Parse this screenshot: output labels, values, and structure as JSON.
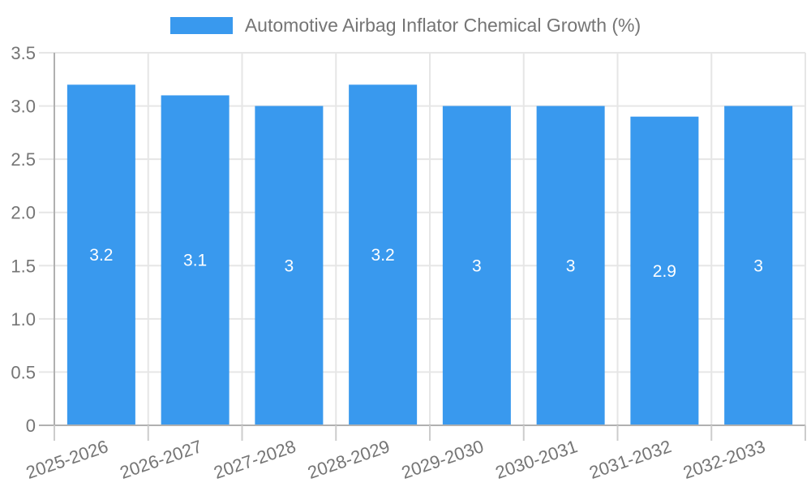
{
  "page": {
    "background": "#ffffff"
  },
  "legend": {
    "label": "Automotive Airbag Inflator Chemical Growth (%)",
    "swatch_color": "#3999ee"
  },
  "chart_data": {
    "type": "bar",
    "title": "Automotive Airbag Inflator Chemical Growth (%)",
    "categories": [
      "2025-2026",
      "2026-2027",
      "2027-2028",
      "2028-2029",
      "2029-2030",
      "2030-2031",
      "2031-2032",
      "2032-2033"
    ],
    "values": [
      3.2,
      3.1,
      3,
      3.2,
      3,
      3,
      2.9,
      3
    ],
    "bar_labels": [
      "3.2",
      "3.1",
      "3",
      "3.2",
      "3",
      "3",
      "2.9",
      "3"
    ],
    "xlabel": "",
    "ylabel": "",
    "ylim": [
      0,
      3.5
    ],
    "y_ticks": [
      {
        "value": 0,
        "label": "0"
      },
      {
        "value": 0.5,
        "label": "0.5"
      },
      {
        "value": 1.0,
        "label": "1.0"
      },
      {
        "value": 1.5,
        "label": "1.5"
      },
      {
        "value": 2.0,
        "label": "2.0"
      },
      {
        "value": 2.5,
        "label": "2.5"
      },
      {
        "value": 3.0,
        "label": "3.0"
      },
      {
        "value": 3.5,
        "label": "3.5"
      }
    ],
    "grid": true,
    "legend_position": "top",
    "x_label_rotation_deg": -19,
    "colors": {
      "bar": "#3999ee",
      "axis_text": "#757575",
      "bar_label_text": "#ffffff",
      "gridline": "#e6e6e6",
      "axis_line": "#b0b0b0",
      "tick": "#cccccc"
    }
  }
}
